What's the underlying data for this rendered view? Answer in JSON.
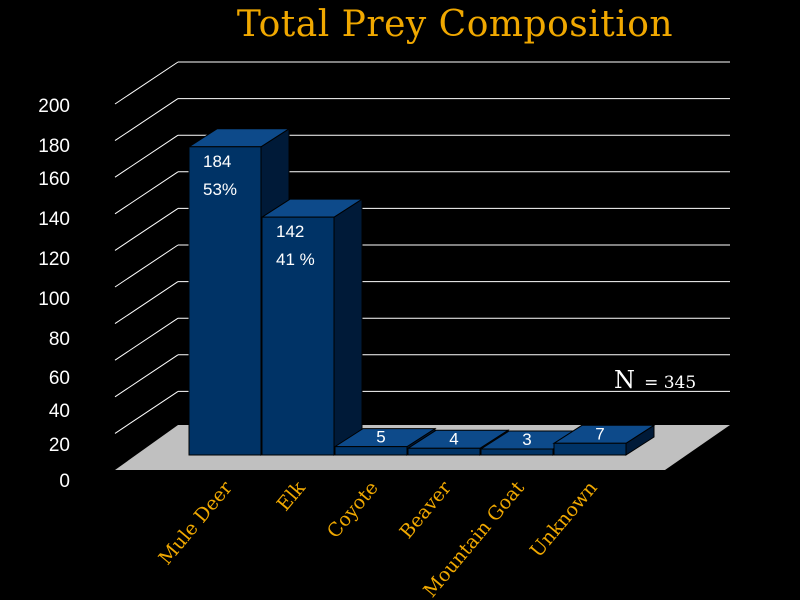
{
  "chart_data": {
    "type": "bar",
    "title": "Total Prey Composition",
    "categories": [
      "Mule Deer",
      "Elk",
      "Coyote",
      "Beaver",
      "Mountain Goat",
      "Unknown"
    ],
    "values": [
      184,
      142,
      5,
      4,
      3,
      7
    ],
    "data_labels": [
      [
        "184",
        "53%"
      ],
      [
        "142",
        "41 %"
      ],
      [
        "5"
      ],
      [
        "4"
      ],
      [
        "3"
      ],
      [
        "7"
      ]
    ],
    "y_ticks": [
      "0",
      "20",
      "40",
      "60",
      "80",
      "100",
      "120",
      "140",
      "160",
      "180",
      "200"
    ],
    "ylim": [
      0,
      200
    ],
    "grid": true,
    "three_d": true,
    "annotation_symbol": "N",
    "annotation_value": "= 345",
    "colors": {
      "background": "#000000",
      "bar_front": "#003366",
      "bar_top": "#0d4a8a",
      "bar_side": "#001a38",
      "floor": "#c0c0c0",
      "grid": "#ffffff",
      "title": "#f0a800",
      "category_labels": "#f0a800",
      "text": "#ffffff"
    }
  }
}
